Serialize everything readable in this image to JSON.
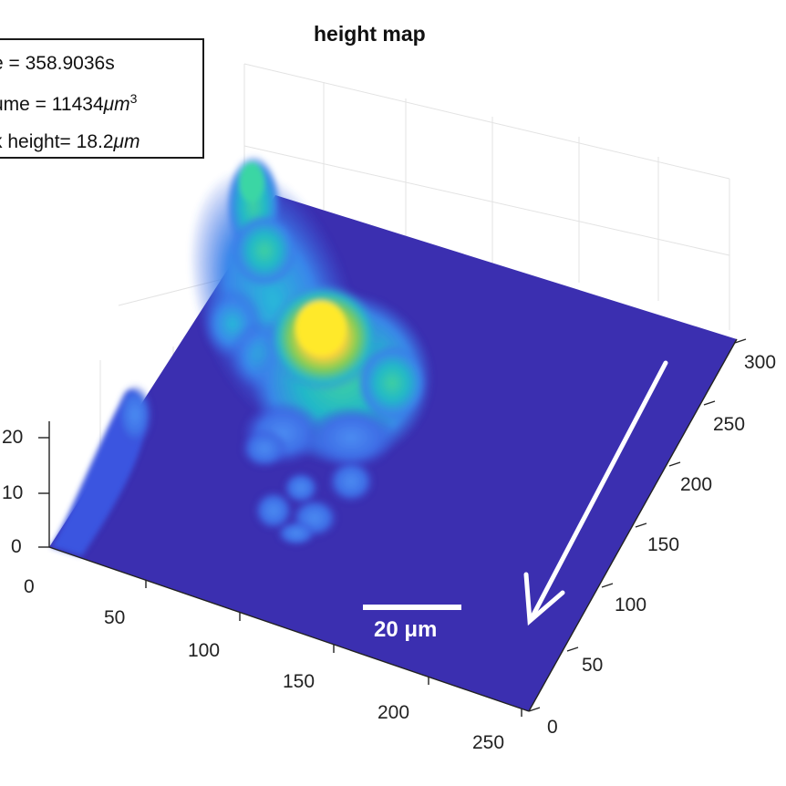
{
  "title": "height map",
  "legend": {
    "line1": "e = 358.9036s",
    "line2_text": "ume = 11434",
    "line2_unit": "μm",
    "line2_exp": "3",
    "line3_text": "k height= 18.2",
    "line3_unit": "μm"
  },
  "scalebar": {
    "label": "20 μm"
  },
  "colors": {
    "surface": "#3b2fb0",
    "low": "#3a66e8",
    "mid": "#22c3a6",
    "high": "#fee52b"
  },
  "chart_data": {
    "type": "surface",
    "title": "height map",
    "xlabel": "",
    "ylabel": "",
    "zlabel": "",
    "x_ticks": [
      "0",
      "50",
      "100",
      "150",
      "200",
      "250"
    ],
    "y_ticks": [
      "0",
      "50",
      "100",
      "150",
      "200",
      "250",
      "300"
    ],
    "z_ticks": [
      "0",
      "10",
      "20"
    ],
    "xlim": [
      0,
      250
    ],
    "ylim": [
      0,
      300
    ],
    "zlim": [
      0,
      20
    ],
    "colormap": "parula",
    "grid": true,
    "legend_position": "top-left",
    "summary": {
      "time_s": 358.9036,
      "volume_um3": 11434,
      "peak_height_um": 18.2
    },
    "peaks": [
      {
        "x": 120,
        "y": 205,
        "height": 18.2
      },
      {
        "x": 55,
        "y": 255,
        "height": 12.5
      },
      {
        "x": 75,
        "y": 225,
        "height": 8.0
      },
      {
        "x": 110,
        "y": 160,
        "height": 7.5
      },
      {
        "x": 140,
        "y": 150,
        "height": 5.0
      },
      {
        "x": 145,
        "y": 130,
        "height": 4.0
      },
      {
        "x": 125,
        "y": 110,
        "height": 3.5
      },
      {
        "x": 40,
        "y": 140,
        "height": 6.0
      },
      {
        "x": 30,
        "y": 80,
        "height": 3.0
      }
    ]
  }
}
